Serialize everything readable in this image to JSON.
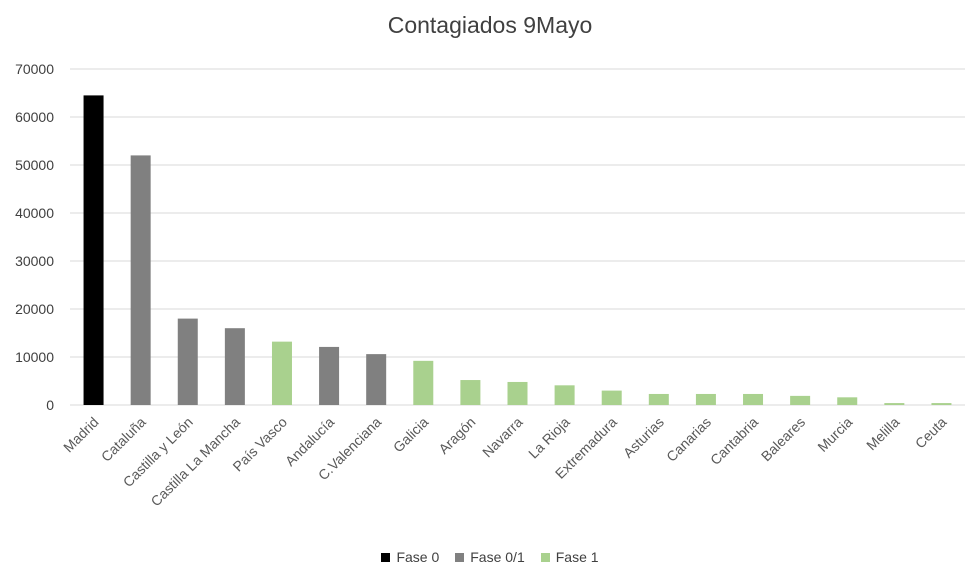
{
  "chart_data": {
    "type": "bar",
    "title": "Contagiados 9Mayo",
    "xlabel": "",
    "ylabel": "",
    "ylim": [
      0,
      70000
    ],
    "yticks": [
      0,
      10000,
      20000,
      30000,
      40000,
      50000,
      60000,
      70000
    ],
    "grid": true,
    "legend_position": "bottom",
    "categories": [
      "Madrid",
      "Cataluña",
      "Castilla y León",
      "Castilla La Mancha",
      "País Vasco",
      "Andalucía",
      "C.Valenciana",
      "Galicia",
      "Aragón",
      "Navarra",
      "La Rioja",
      "Extremadura",
      "Asturias",
      "Canarias",
      "Cantabria",
      "Baleares",
      "Murcia",
      "Melilla",
      "Ceuta"
    ],
    "values": [
      64500,
      52000,
      18000,
      16000,
      13200,
      12100,
      10600,
      9200,
      5200,
      4800,
      4100,
      3000,
      2300,
      2300,
      2300,
      1900,
      1600,
      400,
      400
    ],
    "phase": [
      "Fase 0",
      "Fase 0/1",
      "Fase 0/1",
      "Fase 0/1",
      "Fase 1",
      "Fase 0/1",
      "Fase 0/1",
      "Fase 1",
      "Fase 1",
      "Fase 1",
      "Fase 1",
      "Fase 1",
      "Fase 1",
      "Fase 1",
      "Fase 1",
      "Fase 1",
      "Fase 1",
      "Fase 1",
      "Fase 1"
    ],
    "legend": [
      {
        "name": "Fase 0",
        "color": "#000000"
      },
      {
        "name": "Fase 0/1",
        "color": "#808080"
      },
      {
        "name": "Fase 1",
        "color": "#a9d18e"
      }
    ]
  }
}
